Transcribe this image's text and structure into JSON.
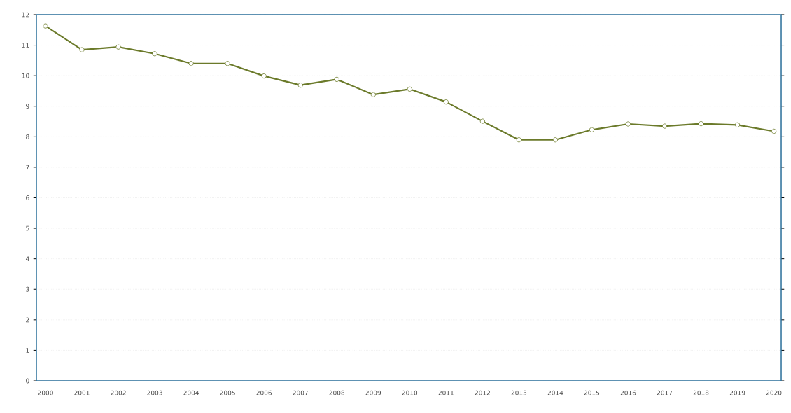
{
  "chart_data": {
    "type": "line",
    "categories": [
      "2000",
      "2001",
      "2002",
      "2003",
      "2004",
      "2005",
      "2006",
      "2007",
      "2008",
      "2009",
      "2010",
      "2011",
      "2012",
      "2013",
      "2014",
      "2015",
      "2016",
      "2017",
      "2018",
      "2019",
      "2020"
    ],
    "values": [
      11.63,
      10.85,
      10.94,
      10.72,
      10.4,
      10.4,
      9.99,
      9.69,
      9.88,
      9.38,
      9.56,
      9.14,
      8.51,
      7.9,
      7.9,
      8.23,
      8.42,
      8.35,
      8.43,
      8.39,
      8.18
    ],
    "color": "#6b7a2a",
    "ylim": [
      0,
      12
    ],
    "yticks": [
      0,
      1,
      2,
      3,
      4,
      5,
      6,
      7,
      8,
      9,
      10,
      11,
      12
    ],
    "grid": "y",
    "marker": "circle",
    "line_style": "solid"
  }
}
